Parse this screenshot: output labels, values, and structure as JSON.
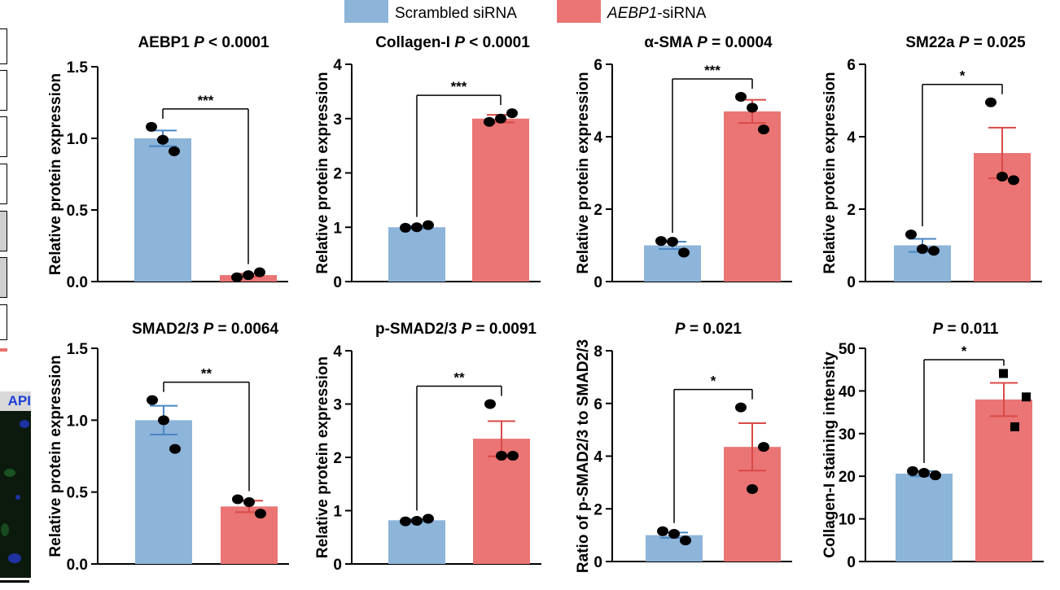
{
  "legend": {
    "items": [
      {
        "name": "Scrambled siRNA",
        "italic_part": "",
        "rest": "Scrambled siRNA",
        "color": "#8db4d9"
      },
      {
        "name": "AEBP1-siRNA",
        "italic_part": "AEBP1",
        "rest": "-siRNA",
        "color": "#ea7574"
      }
    ]
  },
  "edge_panel": {
    "micro_label": "API"
  },
  "colors": {
    "control_bar": "#8db4d9",
    "control_err": "#4a86c3",
    "treat_bar": "#ea7574",
    "treat_err": "#d94a47",
    "axis": "#000000"
  },
  "chart_data": [
    {
      "type": "bar",
      "title": "AEBP1",
      "p_value": "P < 0.0001",
      "significance": "***",
      "ylabel": "Relative protein expression",
      "ylim": [
        0,
        1.5
      ],
      "yticks": [
        "0.0",
        "0.5",
        "1.0",
        "1.5"
      ],
      "ytick_values": [
        0,
        0.5,
        1.0,
        1.5
      ],
      "categories": [
        "Scrambled siRNA",
        "AEBP1-siRNA"
      ],
      "values": [
        1.0,
        0.045
      ],
      "errors": [
        0.055,
        0.01
      ],
      "points": [
        [
          1.08,
          0.91,
          0.99
        ],
        [
          0.03,
          0.065,
          0.045
        ]
      ],
      "marker": "circle"
    },
    {
      "type": "bar",
      "title": "Collagen-I",
      "p_value": "P < 0.0001",
      "significance": "***",
      "ylabel": "Relative protein expression",
      "ylim": [
        0,
        4
      ],
      "yticks": [
        "0",
        "1",
        "2",
        "3",
        "4"
      ],
      "ytick_values": [
        0,
        1,
        2,
        3,
        4
      ],
      "categories": [
        "Scrambled siRNA",
        "AEBP1-siRNA"
      ],
      "values": [
        1.0,
        3.0
      ],
      "errors": [
        0.02,
        0.07
      ],
      "points": [
        [
          0.99,
          1.04,
          1.0
        ],
        [
          2.94,
          3.1,
          3.0
        ]
      ],
      "marker": "circle"
    },
    {
      "type": "bar",
      "title": "α-SMA",
      "p_value": "P = 0.0004",
      "significance": "***",
      "ylabel": "Relative protein expression",
      "ylim": [
        0,
        6
      ],
      "yticks": [
        "0",
        "2",
        "4",
        "6"
      ],
      "ytick_values": [
        0,
        2,
        4,
        6
      ],
      "categories": [
        "Scrambled siRNA",
        "AEBP1-siRNA"
      ],
      "values": [
        1.0,
        4.7
      ],
      "errors": [
        0.1,
        0.32
      ],
      "points": [
        [
          1.12,
          0.8,
          1.1
        ],
        [
          5.1,
          4.2,
          4.8
        ]
      ],
      "marker": "circle"
    },
    {
      "type": "bar",
      "title": "SM22a",
      "p_value": "P = 0.025",
      "significance": "*",
      "ylabel": "Relative protein expression",
      "ylim": [
        0,
        6
      ],
      "yticks": [
        "0",
        "2",
        "4",
        "6"
      ],
      "ytick_values": [
        0,
        2,
        4,
        6
      ],
      "categories": [
        "Scrambled siRNA",
        "AEBP1-siRNA"
      ],
      "values": [
        1.0,
        3.55
      ],
      "errors": [
        0.18,
        0.7
      ],
      "points": [
        [
          1.3,
          0.85,
          0.9
        ],
        [
          4.95,
          2.8,
          2.9
        ]
      ],
      "marker": "circle"
    },
    {
      "type": "bar",
      "title": "SMAD2/3",
      "p_value": "P = 0.0064",
      "significance": "**",
      "ylabel": "Relative protein expression",
      "ylim": [
        0,
        1.5
      ],
      "yticks": [
        "0.0",
        "0.5",
        "1.0",
        "1.5"
      ],
      "ytick_values": [
        0,
        0.5,
        1.0,
        1.5
      ],
      "categories": [
        "Scrambled siRNA",
        "AEBP1-siRNA"
      ],
      "values": [
        1.0,
        0.4
      ],
      "errors": [
        0.1,
        0.04
      ],
      "points": [
        [
          1.14,
          0.8,
          1.0
        ],
        [
          0.45,
          0.35,
          0.43
        ]
      ],
      "marker": "circle"
    },
    {
      "type": "bar",
      "title": "p-SMAD2/3",
      "p_value": "P = 0.0091",
      "significance": "**",
      "ylabel": "Relative protein expression",
      "ylim": [
        0,
        4
      ],
      "yticks": [
        "0",
        "1",
        "2",
        "3",
        "4"
      ],
      "ytick_values": [
        0,
        1,
        2,
        3,
        4
      ],
      "categories": [
        "Scrambled siRNA",
        "AEBP1-siRNA"
      ],
      "values": [
        0.82,
        2.35
      ],
      "errors": [
        0.02,
        0.33
      ],
      "points": [
        [
          0.8,
          0.85,
          0.81
        ],
        [
          3.0,
          2.03,
          2.03
        ]
      ],
      "marker": "circle"
    },
    {
      "type": "bar",
      "title": "",
      "p_value": "P = 0.021",
      "significance": "*",
      "ylabel": "Ratio of p-SMAD2/3 to SMAD2/3",
      "ylim": [
        0,
        8
      ],
      "yticks": [
        "0",
        "2",
        "4",
        "6",
        "8"
      ],
      "ytick_values": [
        0,
        2,
        4,
        6,
        8
      ],
      "categories": [
        "Scrambled siRNA",
        "AEBP1-siRNA"
      ],
      "values": [
        1.0,
        4.35
      ],
      "errors": [
        0.1,
        0.9
      ],
      "points": [
        [
          1.15,
          0.8,
          1.05
        ],
        [
          5.85,
          4.35,
          2.75
        ]
      ],
      "marker": "circle"
    },
    {
      "type": "bar",
      "title": "",
      "p_value": "P = 0.011",
      "significance": "*",
      "ylabel": "Collagen-I staining intensity",
      "ylim": [
        0,
        50
      ],
      "yticks": [
        "0",
        "10",
        "20",
        "30",
        "40",
        "50"
      ],
      "ytick_values": [
        0,
        10,
        20,
        30,
        40,
        50
      ],
      "categories": [
        "Scrambled siRNA",
        "AEBP1-siRNA"
      ],
      "values": [
        20.6,
        38.0
      ],
      "errors": [
        0.6,
        3.9
      ],
      "points": [
        [
          21.2,
          20.2,
          20.8
        ],
        [
          44.0,
          38.5,
          31.5
        ]
      ],
      "marker": "mixed"
    }
  ]
}
